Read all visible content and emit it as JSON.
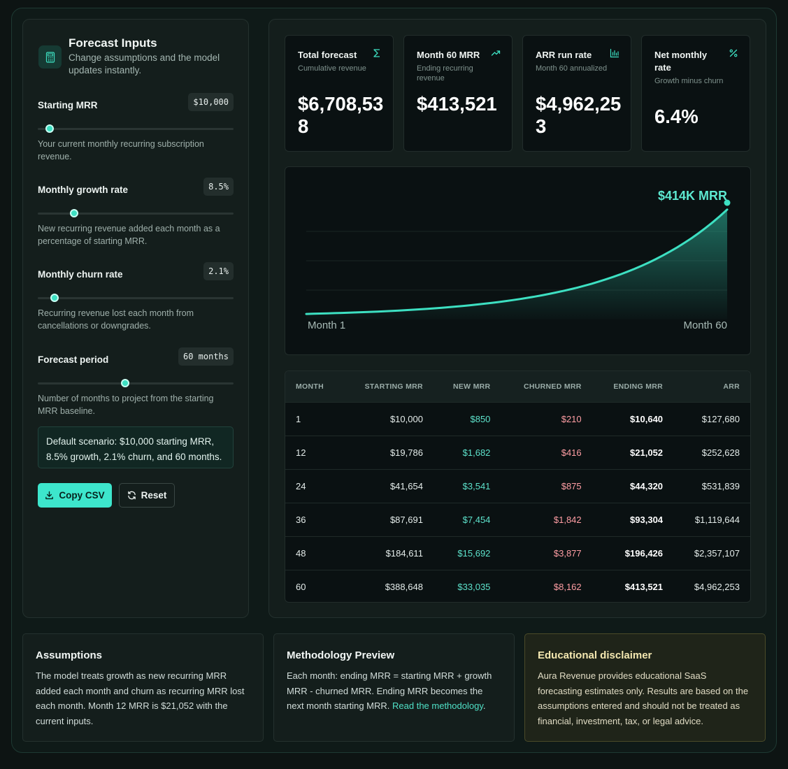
{
  "inputs": {
    "title": "Forecast Inputs",
    "subtitle": "Change assumptions and the model updates instantly.",
    "icon": "calculator-icon",
    "fields": [
      {
        "label": "Starting MRR",
        "value": "$10,000",
        "position": 0.06,
        "description": "Your current monthly recurring subscription revenue."
      },
      {
        "label": "Monthly growth rate",
        "value": "8.5%",
        "position": 0.185,
        "description": "New recurring revenue added each month as a percentage of starting MRR."
      },
      {
        "label": "Monthly churn rate",
        "value": "2.1%",
        "position": 0.085,
        "description": "Recurring revenue lost each month from cancellations or downgrades."
      },
      {
        "label": "Forecast period",
        "value": "60 months",
        "position": 0.445,
        "description": "Number of months to project from the starting MRR baseline."
      }
    ],
    "scenario": "Default scenario: $10,000 starting MRR, 8.5% growth, 2.1% churn, and 60 months.",
    "copy_label": "Copy CSV",
    "reset_label": "Reset"
  },
  "kpis": [
    {
      "title": "Total forecast",
      "sub": "Cumulative revenue",
      "value": "$6,708,538",
      "icon": "sigma-icon"
    },
    {
      "title": "Month 60 MRR",
      "sub": "Ending recurring revenue",
      "value": "$413,521",
      "icon": "trend-up-icon"
    },
    {
      "title": "ARR run rate",
      "sub": "Month 60 annualized",
      "value": "$4,962,253",
      "icon": "bar-chart-icon"
    },
    {
      "title": "Net monthly rate",
      "sub": "Growth minus churn",
      "value": "6.4%",
      "icon": "percent-icon"
    }
  ],
  "chart_data": {
    "type": "area",
    "x_start_label": "Month 1",
    "x_end_label": "Month 60",
    "end_annotation": "$414K MRR",
    "start_value": 10000,
    "monthly_rate": 0.064,
    "months": 60,
    "end_value": 413521,
    "color": "#3de0c2"
  },
  "table": {
    "headers": [
      "MONTH",
      "STARTING MRR",
      "NEW MRR",
      "CHURNED MRR",
      "ENDING MRR",
      "ARR"
    ],
    "rows": [
      [
        "1",
        "$10,000",
        "$850",
        "$210",
        "$10,640",
        "$127,680"
      ],
      [
        "12",
        "$19,786",
        "$1,682",
        "$416",
        "$21,052",
        "$252,628"
      ],
      [
        "24",
        "$41,654",
        "$3,541",
        "$875",
        "$44,320",
        "$531,839"
      ],
      [
        "36",
        "$87,691",
        "$7,454",
        "$1,842",
        "$93,304",
        "$1,119,644"
      ],
      [
        "48",
        "$184,611",
        "$15,692",
        "$3,877",
        "$196,426",
        "$2,357,107"
      ],
      [
        "60",
        "$388,648",
        "$33,035",
        "$8,162",
        "$413,521",
        "$4,962,253"
      ]
    ]
  },
  "cards": {
    "assumptions": {
      "title": "Assumptions",
      "body": "The model treats growth as new recurring MRR added each month and churn as recurring MRR lost each month. Month 12 MRR is $21,052 with the current inputs."
    },
    "methodology": {
      "title": "Methodology Preview",
      "body": "Each month: ending MRR = starting MRR + growth MRR - churned MRR. Ending MRR becomes the next month starting MRR.",
      "link": "Read the methodology"
    },
    "disclaimer": {
      "title": "Educational disclaimer",
      "body": "Aura Revenue provides educational SaaS forecasting estimates only. Results are based on the assumptions entered and should not be treated as financial, investment, tax, or legal advice."
    }
  }
}
